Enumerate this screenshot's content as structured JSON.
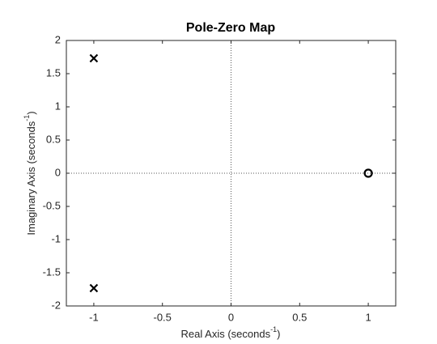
{
  "chart_data": {
    "type": "scatter",
    "title": "Pole-Zero Map",
    "xlabel": [
      "Real Axis (seconds",
      "-1",
      ")"
    ],
    "ylabel": [
      "Imaginary Axis (seconds",
      "-1",
      ")"
    ],
    "xlim": [
      -1.2,
      1.2
    ],
    "xticks": [
      -1,
      -0.5,
      0,
      0.5,
      1
    ],
    "ylim": [
      -2,
      2
    ],
    "yticks": [
      -2,
      -1.5,
      -1,
      -0.5,
      0,
      0.5,
      1,
      1.5,
      2
    ],
    "zero_lines": true,
    "series": [
      {
        "marker": "x",
        "color": "#000000",
        "x": [
          -1,
          -1
        ],
        "values": [
          1.732,
          -1.732
        ]
      },
      {
        "marker": "o",
        "color": "#000000",
        "x": [
          1
        ],
        "values": [
          0
        ]
      }
    ]
  }
}
